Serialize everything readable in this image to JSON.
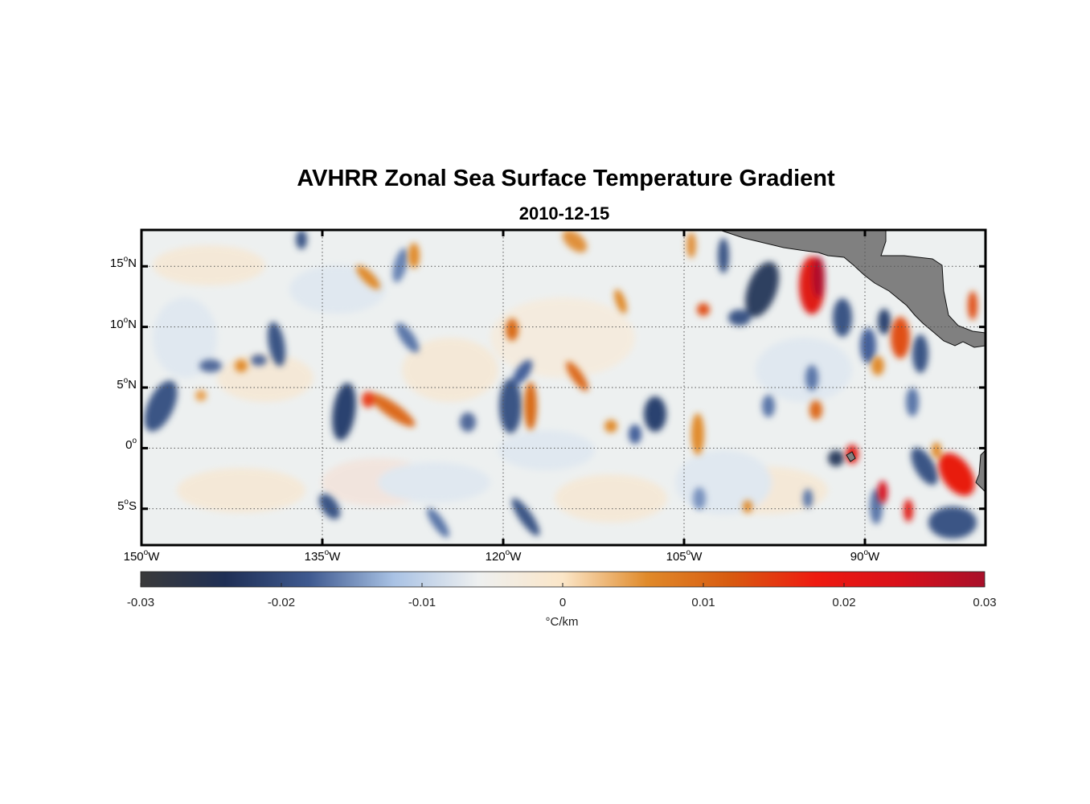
{
  "title": "AVHRR Zonal Sea Surface Temperature Gradient",
  "subtitle": "2010-12-15",
  "map": {
    "lon_range": [
      -150,
      -80
    ],
    "lat_range": [
      -8,
      18
    ],
    "land_color": "#808080",
    "grid": "dotted",
    "x_ticks": [
      {
        "lon": -150,
        "label": "150",
        "suffix": "W"
      },
      {
        "lon": -135,
        "label": "135",
        "suffix": "W"
      },
      {
        "lon": -120,
        "label": "120",
        "suffix": "W"
      },
      {
        "lon": -105,
        "label": "105",
        "suffix": "W"
      },
      {
        "lon": -90,
        "label": "90",
        "suffix": "W"
      }
    ],
    "y_ticks": [
      {
        "lat": 15,
        "label": "15",
        "suffix": "N"
      },
      {
        "lat": 10,
        "label": "10",
        "suffix": "N"
      },
      {
        "lat": 5,
        "label": "5",
        "suffix": "N"
      },
      {
        "lat": 0,
        "label": "0",
        "suffix": ""
      },
      {
        "lat": -5,
        "label": "5",
        "suffix": "S"
      }
    ]
  },
  "colorbar": {
    "range": [
      -0.03,
      0.03
    ],
    "ticks": [
      "-0.03",
      "-0.02",
      "-0.01",
      "0",
      "0.01",
      "0.02",
      "0.03"
    ],
    "label": "°C/km",
    "colors": [
      "#3a3a3a",
      "#1f2f55",
      "#3f5a90",
      "#a9c2e4",
      "#eef0f0",
      "#fbe6c8",
      "#e08a2a",
      "#d85a10",
      "#ee1a10",
      "#d8101a",
      "#a8102a"
    ]
  }
}
